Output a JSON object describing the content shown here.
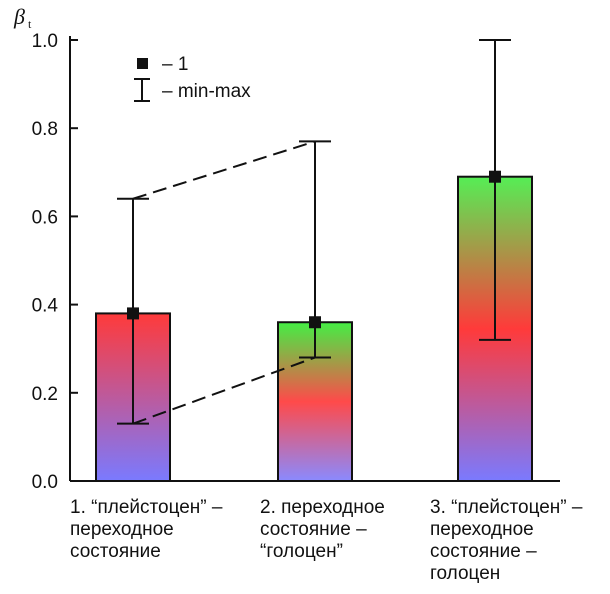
{
  "chart_data": {
    "type": "bar",
    "ylabel": "β",
    "ylabel_subscript": "t",
    "ylim": [
      0,
      1.0
    ],
    "yticks": [
      0.0,
      0.2,
      0.4,
      0.6,
      0.8,
      1.0
    ],
    "ytick_labels": [
      "0.0",
      "0.2",
      "0.4",
      "0.6",
      "0.8",
      "1.0"
    ],
    "categories": [
      [
        "1. “плейстоцен” –",
        "переходное",
        "состояние"
      ],
      [
        "2. переходное",
        "состояние –",
        "“голоцен”"
      ],
      [
        "3. “плейстоцен” –",
        "переходное",
        "состояние –",
        "голоцен"
      ]
    ],
    "values": [
      0.38,
      0.36,
      0.69
    ],
    "points": [
      0.38,
      0.36,
      0.69
    ],
    "min": [
      0.13,
      0.28,
      0.32
    ],
    "max": [
      0.64,
      0.77,
      1.0
    ],
    "gradients": [
      [
        "#ff3a3a",
        "#7a7aff"
      ],
      [
        "#44ee44",
        "#ff4a4a",
        "#8a8aff"
      ],
      [
        "#55ee55",
        "#ff3a3a",
        "#7a7aff"
      ]
    ],
    "connectors": [
      {
        "from_bar": 0,
        "from": "max",
        "to_bar": 1,
        "to": "max"
      },
      {
        "from_bar": 0,
        "from": "min",
        "to_bar": 1,
        "to": "min"
      }
    ],
    "legend": {
      "position": "top-left",
      "point_label": "– 1",
      "range_label": "– min-max"
    }
  }
}
